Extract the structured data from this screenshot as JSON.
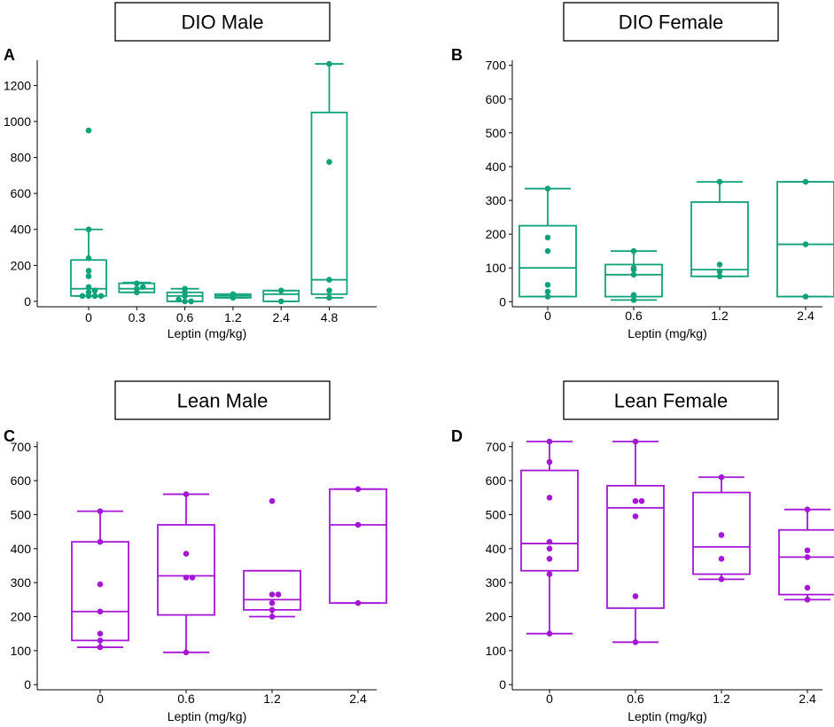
{
  "colors": {
    "dio": "#10a27a",
    "lean": "#a516d6"
  },
  "chart_data": [
    {
      "type": "box",
      "panel": "A",
      "title": "DIO Male",
      "xlabel": "Leptin (mg/kg)",
      "ylabel": "",
      "ylim": [
        -30,
        1340
      ],
      "yticks": [
        0,
        200,
        400,
        600,
        800,
        1000,
        1200
      ],
      "color_key": "dio",
      "categories": [
        "0",
        "0.3",
        "0.6",
        "1.2",
        "2.4",
        "4.8"
      ],
      "boxes": [
        {
          "whisker_low": 30,
          "q1": 30,
          "median": 70,
          "q3": 230,
          "whisker_high": 400,
          "points": [
            30,
            30,
            30,
            30,
            50,
            60,
            80,
            140,
            170,
            240,
            400,
            950
          ]
        },
        {
          "whisker_low": 50,
          "q1": 50,
          "median": 70,
          "q3": 100,
          "whisker_high": 105,
          "points": [
            50,
            70,
            80,
            100
          ]
        },
        {
          "whisker_low": 0,
          "q1": 0,
          "median": 30,
          "q3": 50,
          "whisker_high": 70,
          "points": [
            0,
            0,
            10,
            30,
            50,
            70
          ]
        },
        {
          "whisker_low": 20,
          "q1": 20,
          "median": 30,
          "q3": 40,
          "whisker_high": 40,
          "points": [
            20,
            40
          ]
        },
        {
          "whisker_low": 0,
          "q1": 0,
          "median": 40,
          "q3": 60,
          "whisker_high": 60,
          "points": [
            0,
            60
          ]
        },
        {
          "whisker_low": 20,
          "q1": 40,
          "median": 120,
          "q3": 1050,
          "whisker_high": 1320,
          "points": [
            20,
            60,
            120,
            775,
            1320
          ]
        }
      ]
    },
    {
      "type": "box",
      "panel": "B",
      "title": "DIO Female",
      "xlabel": "Leptin (mg/kg)",
      "ylabel": "",
      "ylim": [
        -15,
        715
      ],
      "yticks": [
        0,
        100,
        200,
        300,
        400,
        500,
        600,
        700
      ],
      "color_key": "dio",
      "categories": [
        "0",
        "0.6",
        "1.2",
        "2.4"
      ],
      "boxes": [
        {
          "whisker_low": 15,
          "q1": 15,
          "median": 100,
          "q3": 225,
          "whisker_high": 335,
          "points": [
            15,
            30,
            50,
            150,
            190,
            335
          ]
        },
        {
          "whisker_low": 5,
          "q1": 15,
          "median": 80,
          "q3": 110,
          "whisker_high": 150,
          "points": [
            5,
            20,
            80,
            95,
            100,
            150
          ]
        },
        {
          "whisker_low": 75,
          "q1": 75,
          "median": 95,
          "q3": 295,
          "whisker_high": 355,
          "points": [
            75,
            90,
            110,
            355
          ]
        },
        {
          "whisker_low": 15,
          "q1": 15,
          "median": 170,
          "q3": 355,
          "whisker_high": 355,
          "points": [
            15,
            170,
            355
          ]
        }
      ]
    },
    {
      "type": "box",
      "panel": "C",
      "title": "Lean Male",
      "xlabel": "Leptin (mg/kg)",
      "ylabel": "",
      "ylim": [
        -15,
        715
      ],
      "yticks": [
        0,
        100,
        200,
        300,
        400,
        500,
        600,
        700
      ],
      "color_key": "lean",
      "categories": [
        "0",
        "0.6",
        "1.2",
        "2.4"
      ],
      "boxes": [
        {
          "whisker_low": 110,
          "q1": 130,
          "median": 215,
          "q3": 420,
          "whisker_high": 510,
          "points": [
            110,
            130,
            150,
            215,
            295,
            420,
            510
          ]
        },
        {
          "whisker_low": 95,
          "q1": 205,
          "median": 320,
          "q3": 470,
          "whisker_high": 560,
          "points": [
            95,
            315,
            315,
            385,
            560
          ]
        },
        {
          "whisker_low": 200,
          "q1": 220,
          "median": 250,
          "q3": 335,
          "whisker_high": 335,
          "points": [
            200,
            220,
            240,
            265,
            265,
            540
          ]
        },
        {
          "whisker_low": 240,
          "q1": 240,
          "median": 470,
          "q3": 575,
          "whisker_high": 575,
          "points": [
            240,
            470,
            575
          ]
        }
      ]
    },
    {
      "type": "box",
      "panel": "D",
      "title": "Lean Female",
      "xlabel": "Leptin (mg/kg)",
      "ylabel": "",
      "ylim": [
        -15,
        715
      ],
      "yticks": [
        0,
        100,
        200,
        300,
        400,
        500,
        600,
        700
      ],
      "color_key": "lean",
      "categories": [
        "0",
        "0.6",
        "1.2",
        "2.4"
      ],
      "boxes": [
        {
          "whisker_low": 150,
          "q1": 335,
          "median": 415,
          "q3": 630,
          "whisker_high": 715,
          "points": [
            150,
            325,
            370,
            400,
            420,
            550,
            655,
            715
          ]
        },
        {
          "whisker_low": 125,
          "q1": 225,
          "median": 520,
          "q3": 585,
          "whisker_high": 715,
          "points": [
            125,
            260,
            495,
            540,
            540,
            715
          ]
        },
        {
          "whisker_low": 310,
          "q1": 325,
          "median": 405,
          "q3": 565,
          "whisker_high": 610,
          "points": [
            310,
            370,
            440,
            610
          ]
        },
        {
          "whisker_low": 250,
          "q1": 265,
          "median": 375,
          "q3": 455,
          "whisker_high": 515,
          "points": [
            250,
            285,
            375,
            395,
            515
          ]
        }
      ]
    }
  ]
}
